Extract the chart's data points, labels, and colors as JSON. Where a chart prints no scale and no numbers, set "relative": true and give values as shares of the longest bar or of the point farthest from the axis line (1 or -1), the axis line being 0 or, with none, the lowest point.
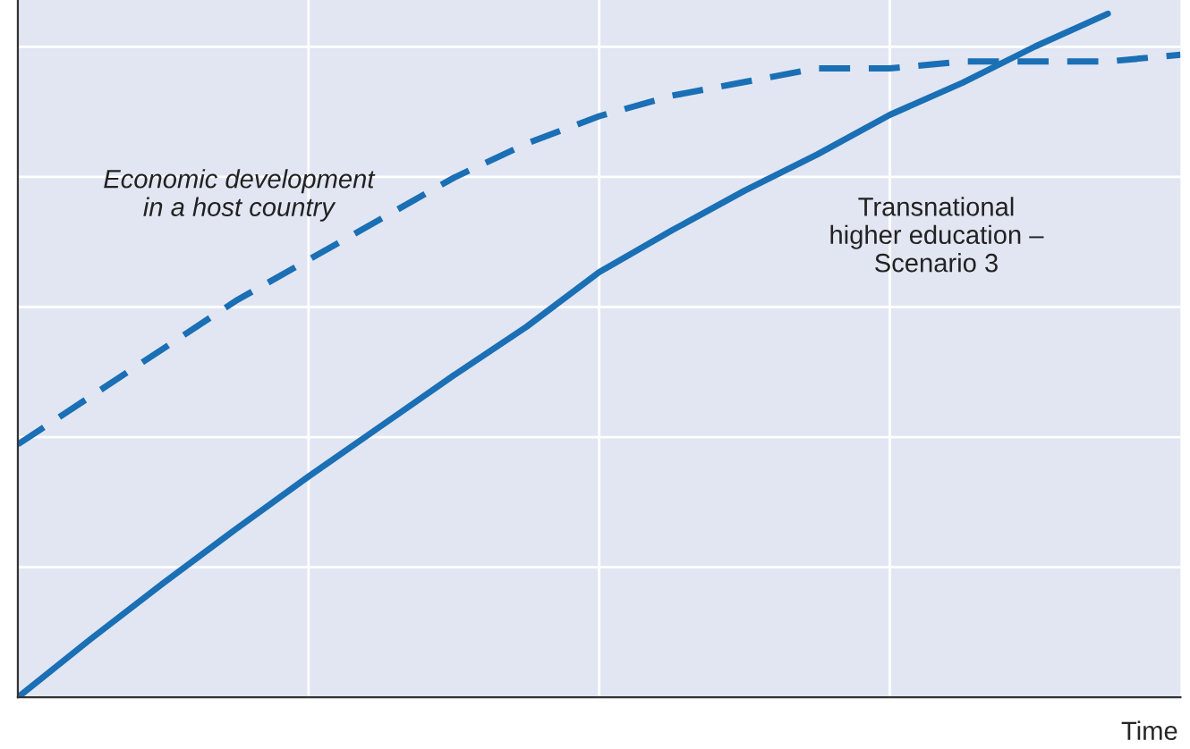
{
  "chart_data": {
    "type": "line",
    "relative": true,
    "xlabel": "Time",
    "grid": true,
    "legend": false,
    "categories": [
      null,
      null,
      null,
      null,
      null,
      null,
      null,
      null,
      null,
      null,
      null,
      null,
      null,
      null,
      null,
      null,
      null
    ],
    "series": [
      {
        "name": "Economic development\nin a host country",
        "color": "#1a6fb5",
        "line_style": "dashed",
        "values": [
          0.37,
          0.44,
          0.51,
          0.58,
          0.64,
          0.7,
          0.76,
          0.81,
          0.85,
          0.88,
          0.9,
          0.92,
          0.92,
          0.93,
          0.93,
          0.93,
          0.94
        ]
      },
      {
        "name": "Transnational\nhigher education –\nScenario 3",
        "color": "#1a6fb5",
        "line_style": "solid",
        "values": [
          0,
          0.085,
          0.167,
          0.246,
          0.323,
          0.397,
          0.471,
          0.542,
          0.622,
          0.683,
          0.741,
          0.794,
          0.852,
          0.899,
          0.952,
          1.0,
          null
        ]
      }
    ]
  }
}
